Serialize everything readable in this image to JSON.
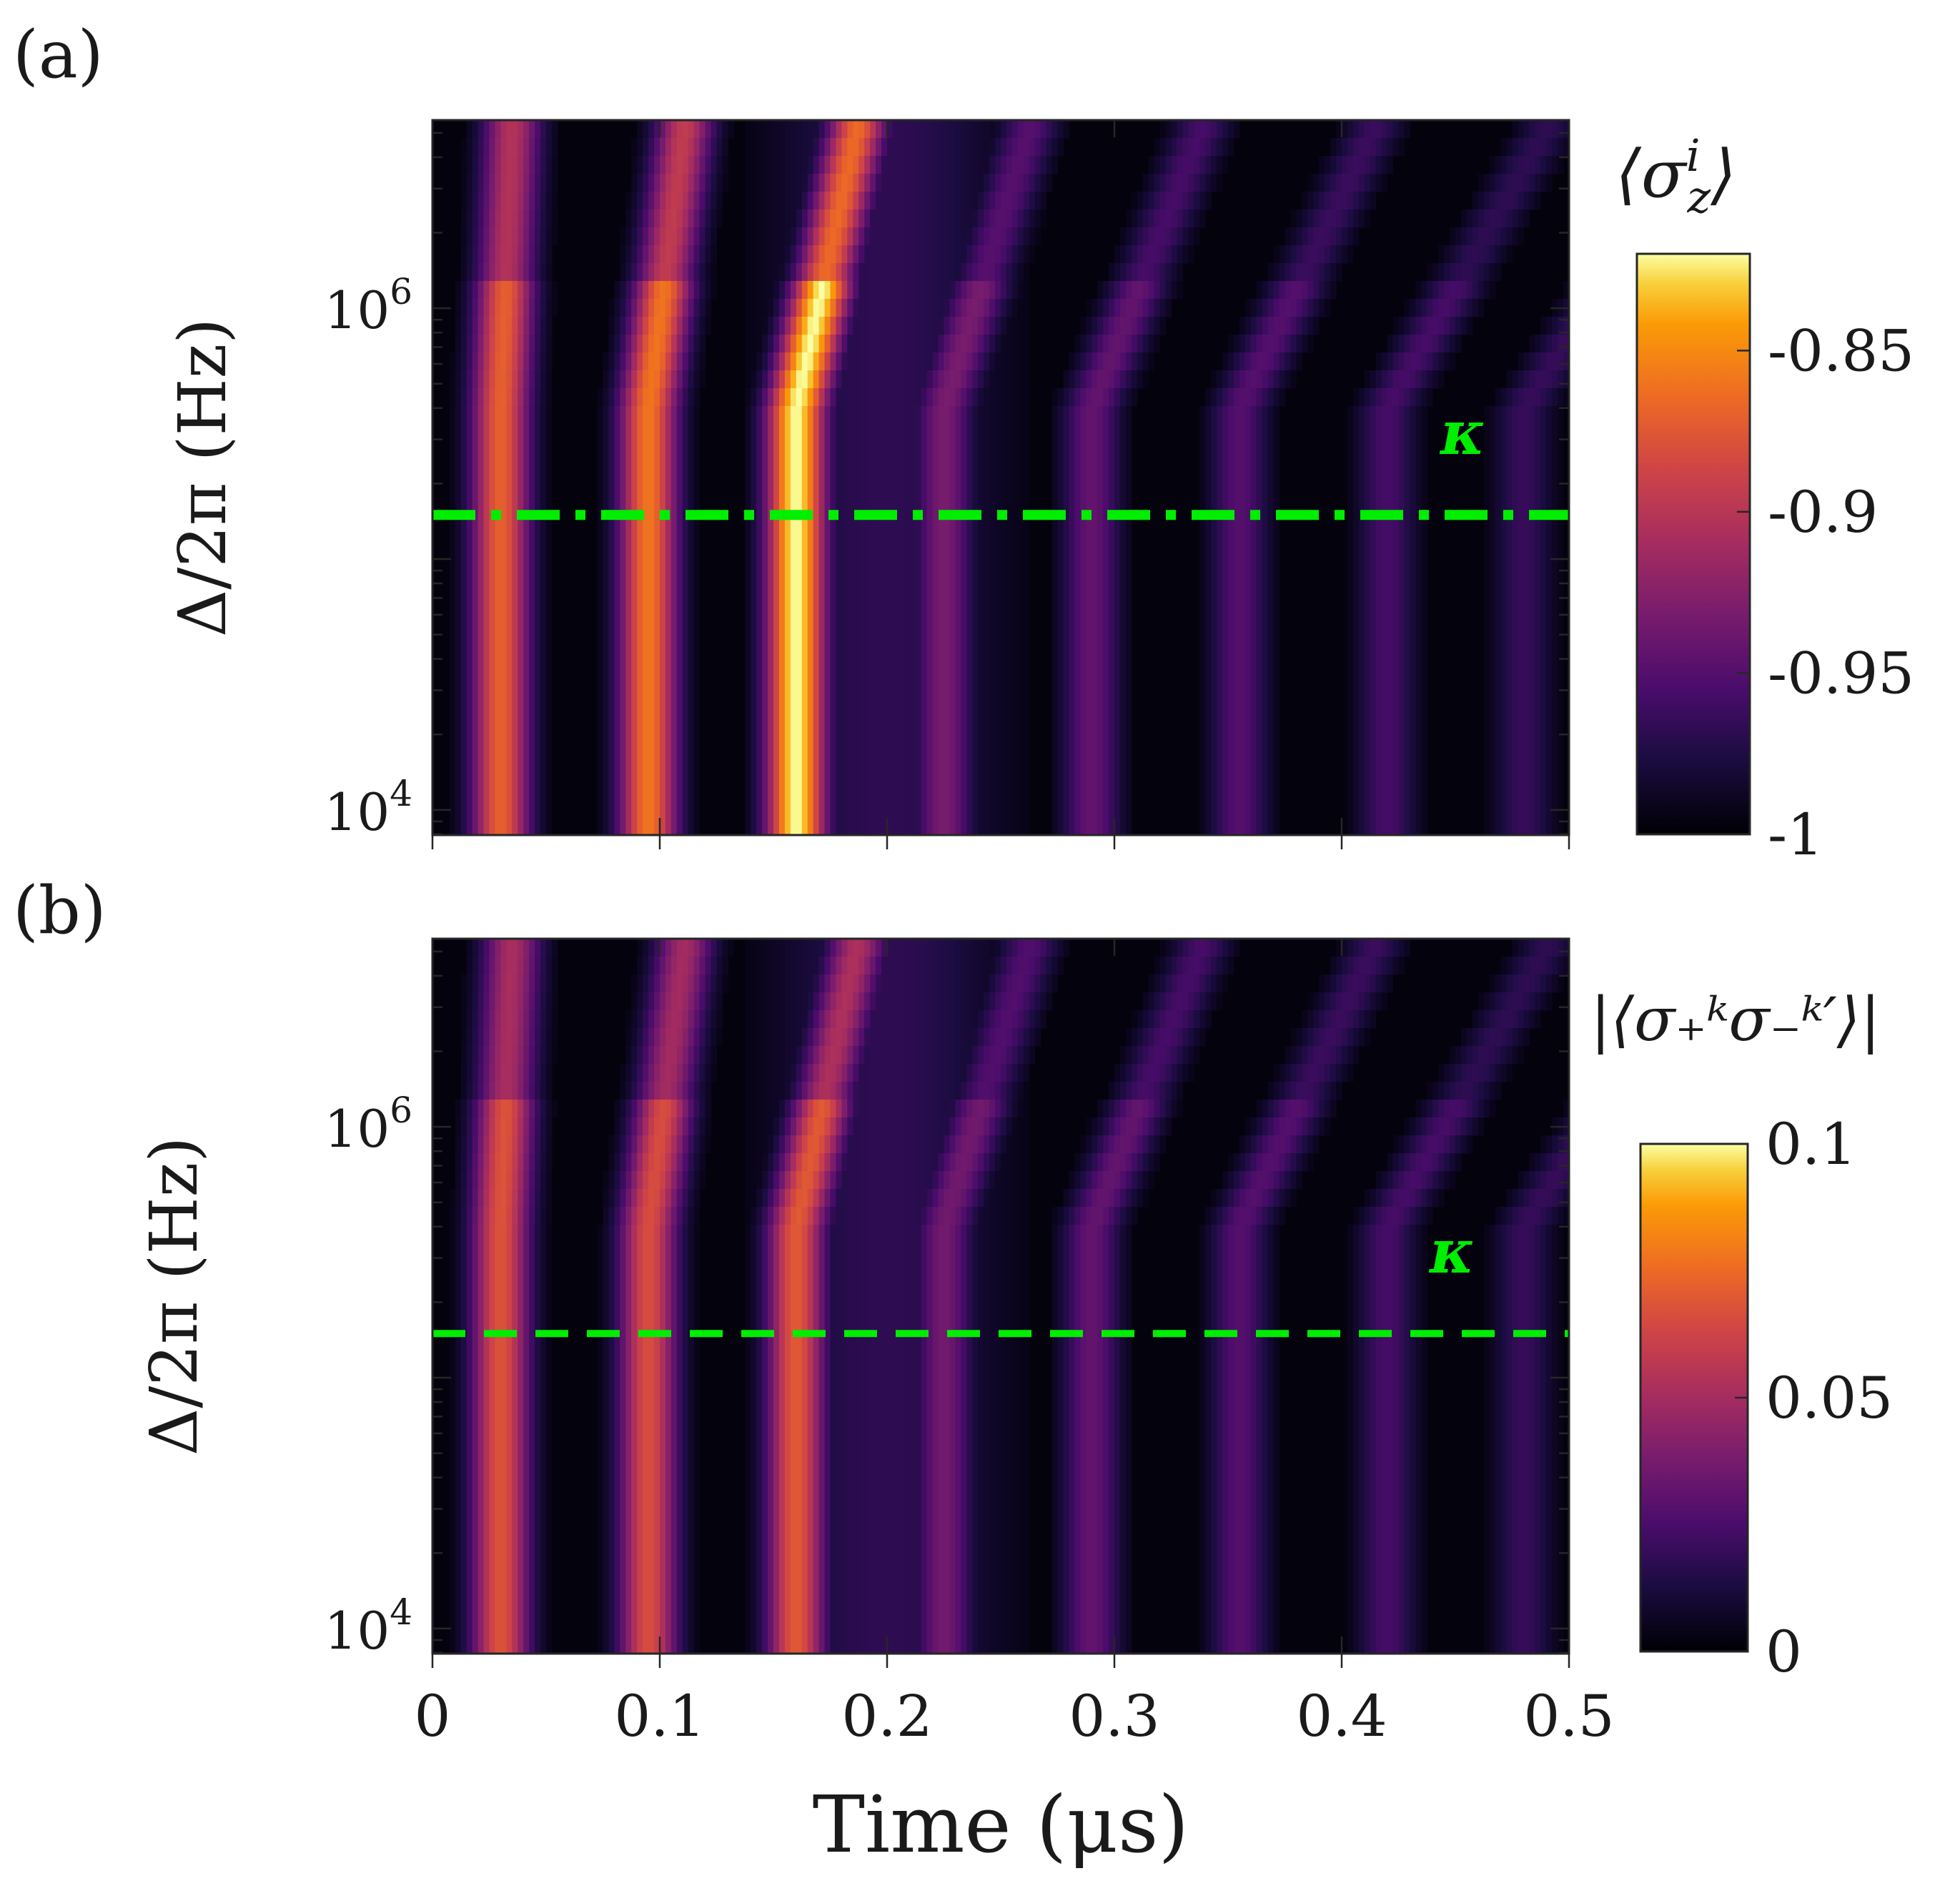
{
  "chart_data": [
    {
      "type": "heatmap",
      "panel_label": "(a)",
      "title": "",
      "xlabel": "Time (μs)",
      "ylabel": "Δ/2π (Hz)",
      "x_range": [
        0,
        0.5
      ],
      "y_range_log10": [
        3.9,
        6.75
      ],
      "y_scale": "log",
      "y_ticks": [
        {
          "value": 10000,
          "base": "10",
          "exp": "4"
        },
        {
          "value": 1000000,
          "base": "10",
          "exp": "6"
        }
      ],
      "x_ticks": [
        0,
        0.1,
        0.2,
        0.3,
        0.4,
        0.5
      ],
      "show_x_tick_labels": false,
      "colormap": "inferno",
      "colorbar": {
        "title": "⟨σ_z^i⟩",
        "title_main": "⟨σ",
        "title_sup": "i",
        "title_sub": "z",
        "title_end": "⟩",
        "range": [
          -1,
          -0.82
        ],
        "tick_values": [
          -1,
          -0.95,
          -0.9,
          -0.85
        ],
        "tick_labels": [
          "-1",
          "-0.95",
          "-0.9",
          "-0.85"
        ]
      },
      "annotation": {
        "text": "κ",
        "y_value": 150000,
        "line_style": "dash-dot",
        "color": "#00ee00"
      },
      "pulses": [
        {
          "t": 0.03,
          "peak": 0.72
        },
        {
          "t": 0.095,
          "peak": 0.78
        },
        {
          "t": 0.16,
          "peak": 1.0
        },
        {
          "t": 0.225,
          "peak": 0.38
        },
        {
          "t": 0.29,
          "peak": 0.32
        },
        {
          "t": 0.355,
          "peak": 0.28
        },
        {
          "t": 0.42,
          "peak": 0.24
        },
        {
          "t": 0.48,
          "peak": 0.2
        }
      ]
    },
    {
      "type": "heatmap",
      "panel_label": "(b)",
      "title": "",
      "xlabel": "Time (μs)",
      "ylabel": "Δ/2π (Hz)",
      "x_range": [
        0,
        0.5
      ],
      "y_range_log10": [
        3.9,
        6.75
      ],
      "y_scale": "log",
      "y_ticks": [
        {
          "value": 10000,
          "base": "10",
          "exp": "4"
        },
        {
          "value": 1000000,
          "base": "10",
          "exp": "6"
        }
      ],
      "x_ticks": [
        0,
        0.1,
        0.2,
        0.3,
        0.4,
        0.5
      ],
      "x_tick_labels": [
        "0",
        "0.1",
        "0.2",
        "0.3",
        "0.4",
        "0.5"
      ],
      "show_x_tick_labels": true,
      "colormap": "inferno",
      "colorbar": {
        "title": "|⟨σ_+^k σ_-^k′⟩|",
        "title_text": "|⟨σ₊ᵏσ₋ᵏ′⟩|",
        "range": [
          0,
          0.1
        ],
        "tick_values": [
          0,
          0.05,
          0.1
        ],
        "tick_labels": [
          "0",
          "0.05",
          "0.1"
        ]
      },
      "annotation": {
        "text": "κ",
        "y_value": 150000,
        "line_style": "dashed",
        "color": "#00ee00"
      },
      "pulses": [
        {
          "t": 0.03,
          "peak": 0.68
        },
        {
          "t": 0.095,
          "peak": 0.66
        },
        {
          "t": 0.16,
          "peak": 0.7
        },
        {
          "t": 0.225,
          "peak": 0.36
        },
        {
          "t": 0.29,
          "peak": 0.32
        },
        {
          "t": 0.355,
          "peak": 0.28
        },
        {
          "t": 0.42,
          "peak": 0.24
        },
        {
          "t": 0.48,
          "peak": 0.2
        }
      ]
    }
  ]
}
